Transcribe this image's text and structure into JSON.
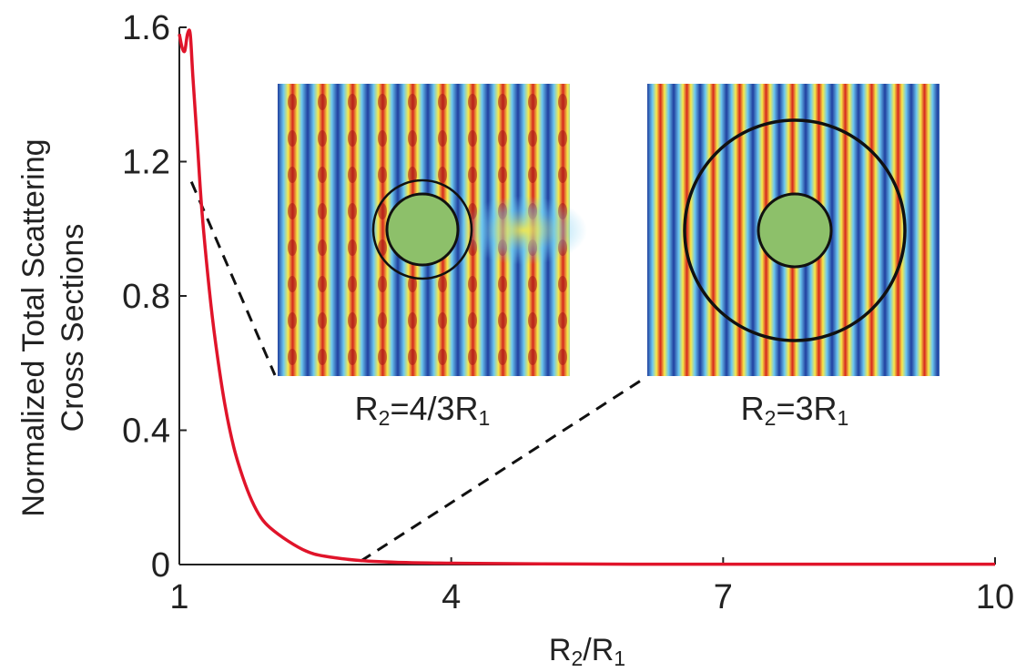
{
  "chart_data": {
    "type": "line",
    "xlabel": "R2/R1",
    "ylabel_lines": [
      "Normalized Total Scattering",
      "Cross Sections"
    ],
    "xlim": [
      1,
      10
    ],
    "ylim": [
      0,
      1.6
    ],
    "xticks": [
      1,
      4,
      7,
      10
    ],
    "xtick_labels": [
      "1",
      "4",
      "7",
      "10"
    ],
    "yticks": [
      0,
      0.4,
      0.8,
      1.2,
      1.6
    ],
    "ytick_labels": [
      "0",
      "0.4",
      "0.8",
      "1.2",
      "1.6"
    ],
    "grid": false,
    "series": [
      {
        "color": "#e0142a",
        "x": [
          1.0,
          1.03,
          1.06,
          1.09,
          1.12,
          1.15,
          1.2,
          1.25,
          1.33,
          1.4,
          1.5,
          1.6,
          1.7,
          1.8,
          1.9,
          2.0,
          2.2,
          2.4,
          2.6,
          3.0,
          3.5,
          4.0,
          5.0,
          6.0,
          7.0,
          8.0,
          9.0,
          10.0
        ],
        "y": [
          1.58,
          1.54,
          1.53,
          1.58,
          1.58,
          1.45,
          1.25,
          1.05,
          0.82,
          0.66,
          0.48,
          0.35,
          0.26,
          0.19,
          0.14,
          0.11,
          0.07,
          0.04,
          0.025,
          0.012,
          0.006,
          0.004,
          0.002,
          0.001,
          0.001,
          0.001,
          0.001,
          0.001
        ]
      }
    ],
    "insets": [
      {
        "label_main": "R",
        "label_sub": "2",
        "label_rest": "=4/3R",
        "label_sub2": "1",
        "callout_x": 1.133,
        "callout_y": 1.14
      },
      {
        "label_main": "R",
        "label_sub": "2",
        "label_rest": "=3R",
        "label_sub2": "1",
        "callout_x": 3.0,
        "callout_y": 0.01
      }
    ]
  },
  "colors": {
    "line": "#e0142a",
    "axis": "#222222",
    "core": "#8dc06a",
    "field_blue": "#1f3f9f",
    "field_red": "#d7261e",
    "field_yellow": "#f7e94a",
    "field_cyan": "#6ec9f0"
  }
}
